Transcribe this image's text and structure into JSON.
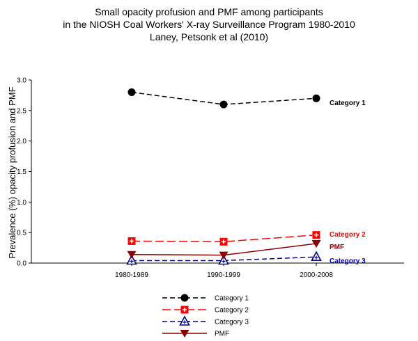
{
  "chart_data": {
    "type": "line",
    "title": [
      "Small opacity profusion and PMF among participants",
      "in the NIOSH Coal Workers' X-ray Surveillance Program 1980-2010",
      "Laney, Petsonk et al (2010)"
    ],
    "xlabel": "",
    "ylabel": "Prevalence (%) opacity profusion and PMF",
    "categories": [
      "1980-1989",
      "1990-1999",
      "2000-2008"
    ],
    "ylim": [
      0,
      3.0
    ],
    "yticks": [
      "0.0",
      "0.5",
      "1.0",
      "1.5",
      "2.0",
      "2.5",
      "3.0"
    ],
    "grid": false,
    "legend_position": "bottom-center",
    "series": [
      {
        "name": "Category 1",
        "values": [
          2.8,
          2.6,
          2.7
        ],
        "color": "#000000",
        "end_label_color": "#000000",
        "marker": "circle",
        "line": "dashed"
      },
      {
        "name": "Category 2",
        "values": [
          0.36,
          0.35,
          0.46
        ],
        "color": "#ff0000",
        "end_label_color": "#ff0000",
        "marker": "square-cross",
        "line": "long-dashed"
      },
      {
        "name": "Category 3",
        "values": [
          0.04,
          0.04,
          0.1
        ],
        "color": "#000080",
        "end_label_color": "#0000cc",
        "marker": "triangle-up-cross",
        "line": "dashed"
      },
      {
        "name": "PMF",
        "values": [
          0.14,
          0.13,
          0.32
        ],
        "color": "#8b0000",
        "end_label_color": "#8b0000",
        "marker": "triangle-down",
        "line": "solid"
      }
    ]
  }
}
